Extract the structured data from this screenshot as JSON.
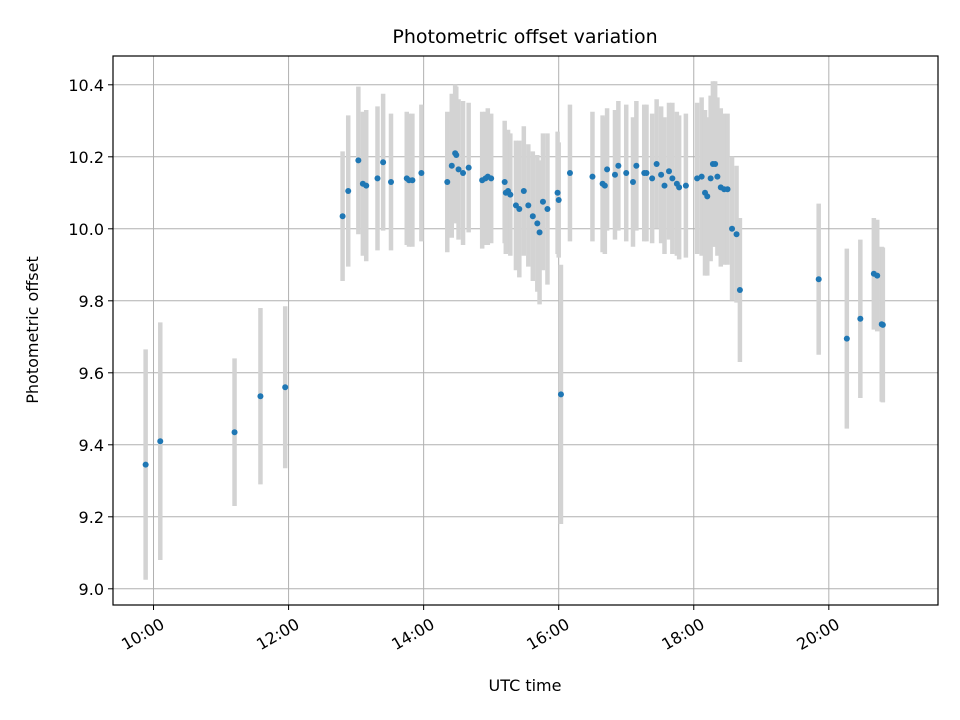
{
  "chart_data": {
    "type": "scatter",
    "title": "Photometric offset variation",
    "xlabel": "UTC time",
    "ylabel": "Photometric offset",
    "x_tick_labels": [
      "10:00",
      "12:00",
      "14:00",
      "16:00",
      "18:00",
      "20:00"
    ],
    "x_tick_hours": [
      10,
      12,
      14,
      16,
      18,
      20
    ],
    "y_ticks": [
      9.0,
      9.2,
      9.4,
      9.6,
      9.8,
      10.0,
      10.2,
      10.4
    ],
    "y_tick_labels": [
      "9.0",
      "9.2",
      "9.4",
      "9.6",
      "9.8",
      "10.0",
      "10.2",
      "10.4"
    ],
    "xlim": [
      "09:24",
      "21:37"
    ],
    "ylim": [
      8.955,
      10.48
    ],
    "grid": true,
    "colors": {
      "point": "#1f77b4",
      "errorbar": "#d3d3d3",
      "grid": "#b0b0b0"
    },
    "series": [
      {
        "x": [
          "09:53",
          "10:06",
          "11:12",
          "11:35",
          "11:57",
          "12:48",
          "12:53",
          "13:02",
          "13:06",
          "13:09",
          "13:19",
          "13:24",
          "13:31",
          "13:45",
          "13:47",
          "13:50",
          "13:58",
          "14:21",
          "14:25",
          "14:28",
          "14:29",
          "14:31",
          "14:35",
          "14:40",
          "14:52",
          "14:55",
          "14:57",
          "15:00",
          "15:12",
          "15:13",
          "15:15",
          "15:17",
          "15:22",
          "15:25",
          "15:29",
          "15:33",
          "15:37",
          "15:41",
          "15:43",
          "15:46",
          "15:50",
          "15:59",
          "16:00",
          "16:02",
          "16:10",
          "16:30",
          "16:39",
          "16:41",
          "16:43",
          "16:50",
          "16:53",
          "17:00",
          "17:06",
          "17:09",
          "17:16",
          "17:18",
          "17:23",
          "17:27",
          "17:31",
          "17:34",
          "17:38",
          "17:41",
          "17:45",
          "17:47",
          "17:53",
          "18:03",
          "18:07",
          "18:10",
          "18:12",
          "18:15",
          "18:17",
          "18:19",
          "18:21",
          "18:24",
          "18:27",
          "18:30",
          "18:34",
          "18:38",
          "18:41",
          "19:51",
          "20:16",
          "20:28",
          "20:40",
          "20:43",
          "20:47",
          "20:48"
        ],
        "y": [
          9.345,
          9.41,
          9.435,
          9.535,
          9.56,
          10.035,
          10.105,
          10.19,
          10.125,
          10.12,
          10.14,
          10.185,
          10.13,
          10.14,
          10.135,
          10.135,
          10.155,
          10.13,
          10.175,
          10.21,
          10.205,
          10.165,
          10.155,
          10.17,
          10.135,
          10.14,
          10.145,
          10.14,
          10.13,
          10.1,
          10.105,
          10.095,
          10.065,
          10.055,
          10.105,
          10.065,
          10.035,
          10.015,
          9.99,
          10.075,
          10.055,
          10.1,
          10.08,
          9.54,
          10.155,
          10.145,
          10.125,
          10.12,
          10.165,
          10.15,
          10.175,
          10.155,
          10.13,
          10.175,
          10.155,
          10.155,
          10.14,
          10.18,
          10.15,
          10.12,
          10.16,
          10.14,
          10.125,
          10.115,
          10.12,
          10.14,
          10.145,
          10.1,
          10.09,
          10.14,
          10.18,
          10.18,
          10.145,
          10.115,
          10.11,
          10.11,
          10.0,
          9.985,
          9.83,
          9.86,
          9.695,
          9.75,
          9.875,
          9.87,
          9.735,
          9.733
        ],
        "err": [
          0.32,
          0.33,
          0.205,
          0.245,
          0.225,
          0.18,
          0.21,
          0.205,
          0.2,
          0.21,
          0.2,
          0.19,
          0.19,
          0.185,
          0.185,
          0.185,
          0.19,
          0.195,
          0.2,
          0.19,
          0.19,
          0.195,
          0.2,
          0.18,
          0.19,
          0.185,
          0.19,
          0.18,
          0.17,
          0.17,
          0.17,
          0.17,
          0.18,
          0.19,
          0.18,
          0.17,
          0.18,
          0.19,
          0.2,
          0.19,
          0.21,
          0.17,
          0.16,
          0.36,
          0.19,
          0.18,
          0.19,
          0.19,
          0.17,
          0.18,
          0.18,
          0.19,
          0.18,
          0.18,
          0.19,
          0.19,
          0.18,
          0.18,
          0.19,
          0.19,
          0.19,
          0.21,
          0.2,
          0.2,
          0.2,
          0.21,
          0.22,
          0.23,
          0.22,
          0.23,
          0.23,
          0.23,
          0.22,
          0.22,
          0.21,
          0.21,
          0.2,
          0.19,
          0.2,
          0.21,
          0.25,
          0.22,
          0.155,
          0.155,
          0.215,
          0.215
        ]
      }
    ]
  }
}
